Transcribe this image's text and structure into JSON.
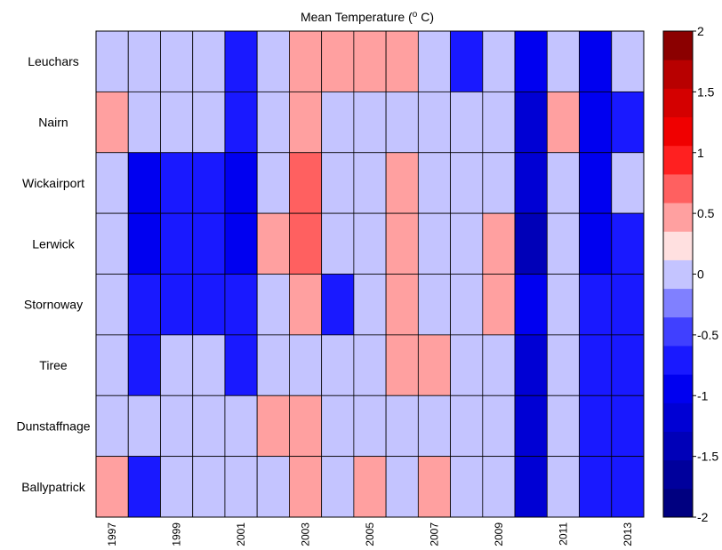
{
  "chart_data": {
    "type": "heatmap",
    "title": "Mean Temperature (",
    "title_degree": "o",
    "title_unit": " C)",
    "rows": [
      "Leuchars",
      "Nairn",
      "Wickairport",
      "Lerwick",
      "Stornoway",
      "Tiree",
      "Dunstaffnage",
      "Ballypatrick"
    ],
    "columns": [
      1997,
      1998,
      1999,
      2000,
      2001,
      2002,
      2003,
      2004,
      2005,
      2006,
      2007,
      2008,
      2009,
      2010,
      2011,
      2012,
      2013
    ],
    "x_tick_labels": [
      "1997",
      "1999",
      "2001",
      "2003",
      "2005",
      "2007",
      "2009",
      "2011",
      "2013"
    ],
    "values": [
      [
        0.1,
        -0.1,
        0.1,
        -0.1,
        -0.6,
        0.1,
        0.4,
        0.4,
        0.4,
        0.4,
        0.1,
        -0.6,
        -0.1,
        -0.9,
        0.1,
        -0.9,
        -0.1
      ],
      [
        0.4,
        0.1,
        0.1,
        -0.1,
        -0.6,
        0.1,
        0.4,
        0.1,
        0.1,
        0.1,
        0.1,
        -0.1,
        0.1,
        -1.1,
        0.4,
        -0.9,
        -0.6
      ],
      [
        0.1,
        -0.9,
        -0.6,
        -0.6,
        -0.9,
        0.1,
        0.6,
        0.1,
        0.1,
        0.4,
        0.1,
        -0.1,
        0.1,
        -1.1,
        0.1,
        -0.9,
        -0.1
      ],
      [
        -0.1,
        -0.9,
        -0.6,
        -0.6,
        -0.9,
        0.4,
        0.6,
        0.1,
        -0.1,
        0.4,
        -0.1,
        0.1,
        0.4,
        -1.4,
        0.1,
        -0.9,
        -0.6
      ],
      [
        0.1,
        -0.6,
        -0.6,
        -0.6,
        -0.6,
        0.1,
        0.4,
        -0.6,
        -0.1,
        0.4,
        0.1,
        -0.1,
        0.4,
        -0.9,
        0.1,
        -0.6,
        -0.6
      ],
      [
        0.1,
        -0.6,
        -0.1,
        -0.1,
        -0.6,
        0.1,
        0.1,
        0.1,
        0.1,
        0.4,
        0.4,
        -0.1,
        0.1,
        -1.1,
        -0.1,
        -0.6,
        -0.6
      ],
      [
        0.1,
        -0.1,
        0.1,
        0.1,
        -0.1,
        0.4,
        0.4,
        0.1,
        -0.1,
        0.1,
        0.1,
        -0.1,
        0.1,
        -1.1,
        0.1,
        -0.6,
        -0.6
      ],
      [
        0.4,
        -0.6,
        -0.1,
        -0.1,
        -0.1,
        0.1,
        0.4,
        0.1,
        0.4,
        0.1,
        0.4,
        -0.1,
        -0.1,
        -1.1,
        -0.1,
        -0.6,
        -0.6
      ]
    ],
    "colorbar": {
      "min": -2,
      "max": 2,
      "step": 0.25,
      "tick_labels": [
        "2",
        "1.5",
        "1",
        "0.5",
        "0",
        "-0.5",
        "-1",
        "-1.5",
        "-2"
      ],
      "colors": [
        "#000080",
        "#00009c",
        "#0000b8",
        "#0000d4",
        "#0000f0",
        "#1919ff",
        "#4040ff",
        "#8080ff",
        "#c4c4ff",
        "#ffe0e0",
        "#ffa0a0",
        "#ff6060",
        "#ff2020",
        "#f00000",
        "#d40000",
        "#b80000",
        "#8b0000"
      ]
    },
    "grid": true,
    "legend": "colorbar-right"
  }
}
